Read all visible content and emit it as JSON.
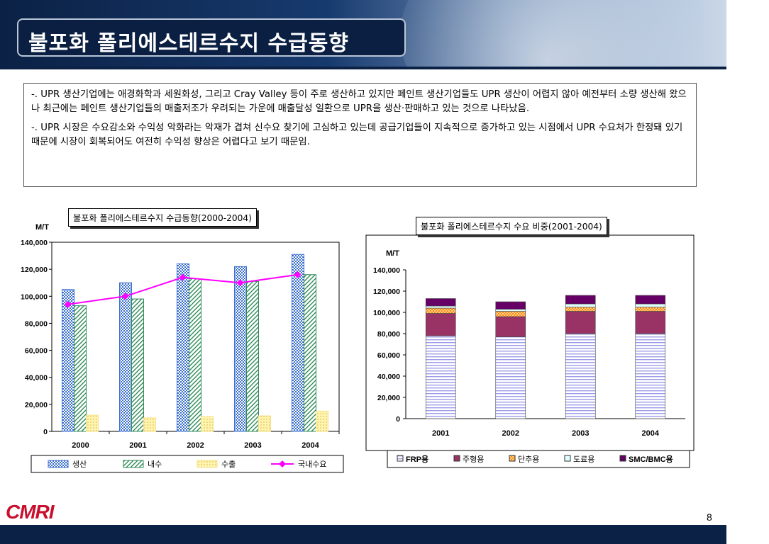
{
  "slide": {
    "title": "불포화 폴리에스테르수지 수급동향",
    "paragraphs": [
      "-. UPR 생산기업에는 애경화학과 세원화성, 그리고 Cray Valley 등이 주로 생산하고 있지만 페인트 생산기업들도 UPR 생산이 어렵지 않아 예전부터 소량 생산해 왔으나 최근에는 페인트 생산기업들의 매출저조가 우려되는 가운에 매출달성 일환으로 UPR을 생산·판매하고 있는 것으로 나타났음.",
      "-. UPR 시장은 수요감소와 수익성 악화라는 악재가 겹쳐 신수요 찾기에 고심하고 있는데 공급기업들이 지속적으로 증가하고 있는 시점에서 UPR 수요처가 한정돼 있기 때문에 시장이 회복되어도 여전히 수익성 향상은 어렵다고 보기 때문임."
    ],
    "logo": "CMRI",
    "page_number": "8",
    "colors": {
      "header_dark": "#0b2145",
      "logo_red": "#c8102e"
    }
  },
  "chart_data": [
    {
      "type": "bar",
      "title": "불포화 폴리에스테르수지 수급동향(2000-2004)",
      "ylabel": "M/T",
      "ylim": [
        0,
        140000
      ],
      "yticks": [
        "0",
        "20,000",
        "40,000",
        "60,000",
        "80,000",
        "100,000",
        "120,000",
        "140,000"
      ],
      "categories": [
        "2000",
        "2001",
        "2002",
        "2003",
        "2004"
      ],
      "series": [
        {
          "name": "생산",
          "kind": "bar",
          "color": "#3b6fd1",
          "values": [
            105000,
            110000,
            124000,
            122000,
            131000
          ]
        },
        {
          "name": "내수",
          "kind": "bar",
          "color": "#2e8b57",
          "values": [
            93000,
            98000,
            113000,
            111000,
            116000
          ]
        },
        {
          "name": "수출",
          "kind": "bar",
          "color": "#f3e08a",
          "values": [
            12000,
            10000,
            11000,
            11500,
            15000
          ]
        },
        {
          "name": "국내수요",
          "kind": "line",
          "color": "#ff00ff",
          "values": [
            94000,
            100000,
            114000,
            110000,
            116000
          ]
        }
      ],
      "legend_position": "bottom"
    },
    {
      "type": "bar",
      "stacked": true,
      "title": "불포화 폴리에스테르수지 수요 비중(2001-2004)",
      "ylabel": "M/T",
      "ylim": [
        0,
        140000
      ],
      "yticks": [
        "0",
        "20,000",
        "40,000",
        "60,000",
        "80,000",
        "100,000",
        "120,000",
        "140,000"
      ],
      "categories": [
        "2001",
        "2002",
        "2003",
        "2004"
      ],
      "series": [
        {
          "name": "FRP용",
          "color": "#b8b8f0",
          "values": [
            78000,
            77000,
            80000,
            80000
          ]
        },
        {
          "name": "주형용",
          "color": "#993366",
          "values": [
            21000,
            19000,
            21000,
            21000
          ]
        },
        {
          "name": "단추용",
          "color": "#ff8c00",
          "values": [
            5000,
            5000,
            4000,
            4000
          ]
        },
        {
          "name": "도료용",
          "color": "#e0ffff",
          "values": [
            2000,
            2000,
            3000,
            3000
          ]
        },
        {
          "name": "SMC/BMC용",
          "color": "#660066",
          "values": [
            7000,
            7000,
            8000,
            8000
          ]
        }
      ],
      "legend_position": "bottom"
    }
  ]
}
